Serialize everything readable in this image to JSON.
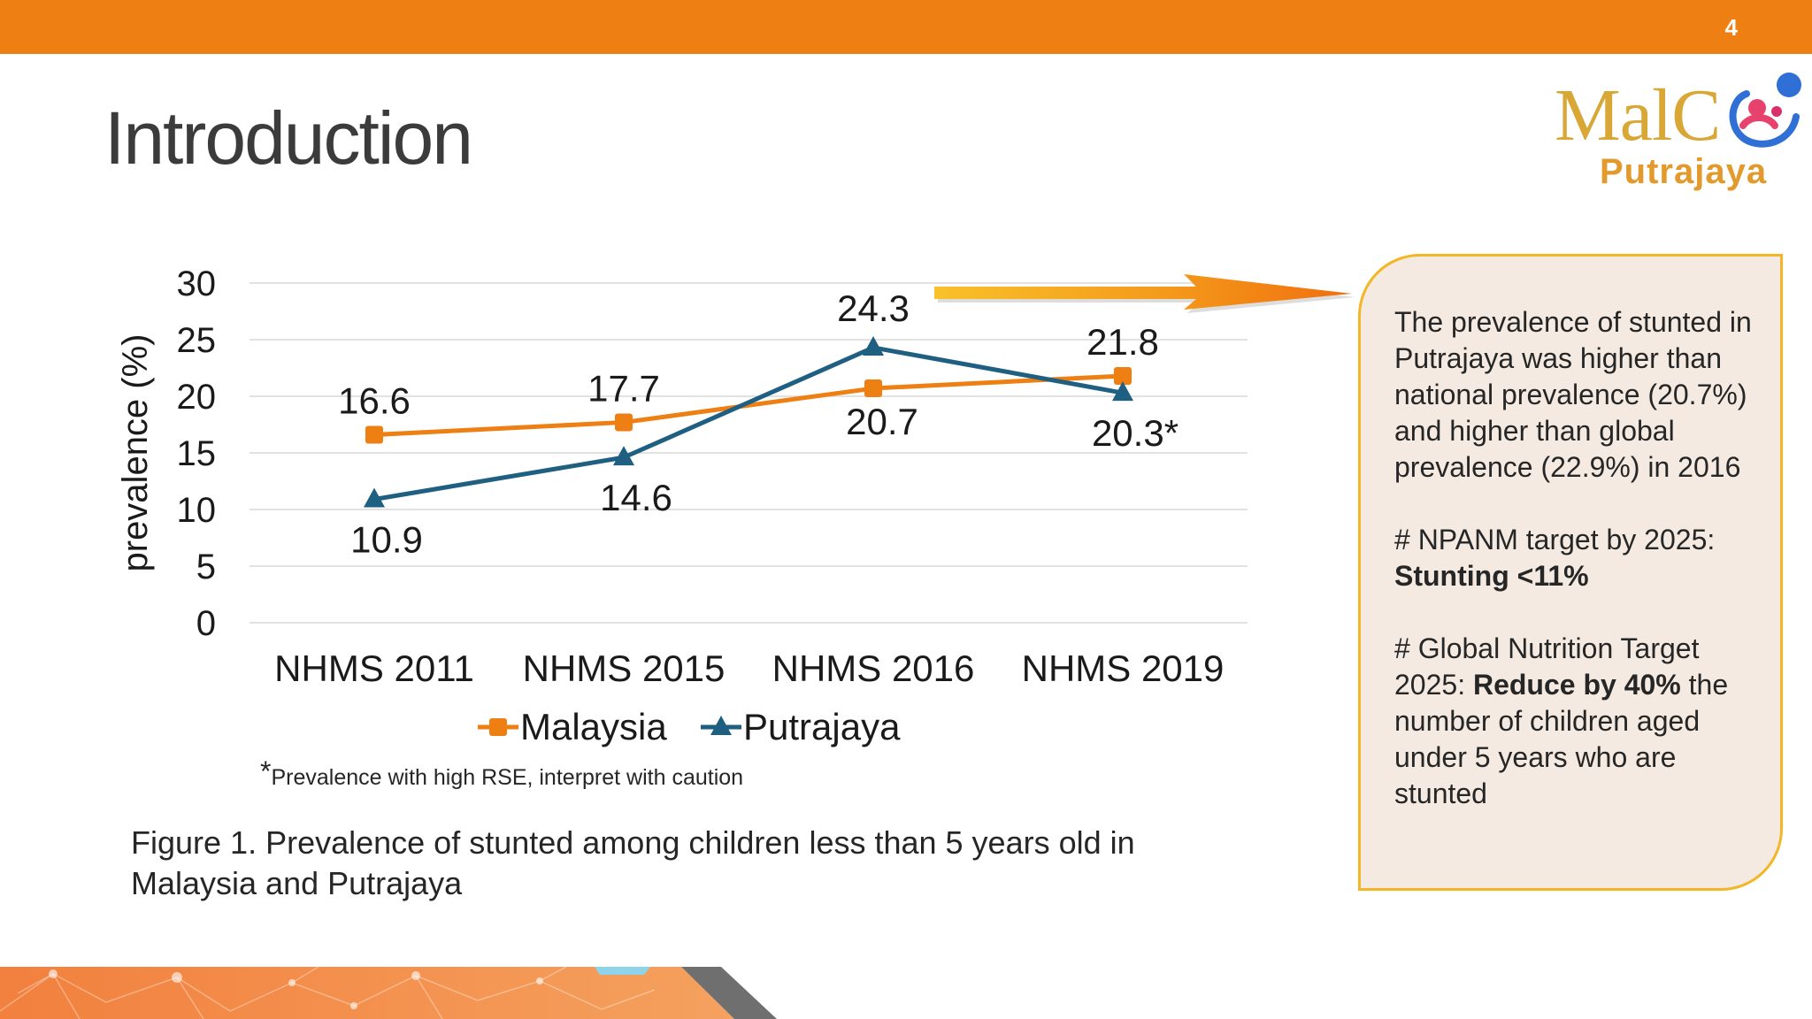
{
  "slide": {
    "number": "4",
    "title": "Introduction"
  },
  "logo": {
    "word": "MalC",
    "sub": "Putrajaya"
  },
  "colors": {
    "accent": "#ee7f13",
    "malaysia": "#ee7f13",
    "putrajaya": "#1f5f82",
    "callout_bg": "#f4eae1",
    "callout_border": "#f3b625"
  },
  "chart_data": {
    "type": "line",
    "categories": [
      "NHMS 2011",
      "NHMS 2015",
      "NHMS 2016",
      "NHMS 2019"
    ],
    "series": [
      {
        "name": "Malaysia",
        "marker": "square",
        "values": [
          16.6,
          17.7,
          20.7,
          21.8
        ],
        "labels": [
          "16.6",
          "17.7",
          "20.7",
          "21.8"
        ]
      },
      {
        "name": "Putrajaya",
        "marker": "triangle",
        "values": [
          10.9,
          14.6,
          24.3,
          20.3
        ],
        "labels": [
          "10.9",
          "14.6",
          "24.3",
          "20.3*"
        ]
      }
    ],
    "title": "",
    "xlabel": "",
    "ylabel": "prevalence (%)",
    "ylim": [
      0,
      30
    ],
    "yticks": [
      0,
      5,
      10,
      15,
      20,
      25,
      30
    ],
    "grid": true,
    "legend": "bottom"
  },
  "footnote": {
    "star": "*",
    "text": "Prevalence with high RSE, interpret with caution"
  },
  "caption": "Figure 1. Prevalence of stunted among children less than 5 years old in Malaysia and Putrajaya",
  "callout": {
    "p1": "The prevalence of stunted in Putrajaya was higher than national prevalence (20.7%) and higher than global prevalence (22.9%) in 2016",
    "p2_prefix": "# NPANM target by 2025:",
    "p2_bold": "Stunting <11%",
    "p3_prefix": "# Global Nutrition Target 2025:",
    "p3_bold": "Reduce by 40%",
    "p3_suffix": "the number of children aged under 5 years who are stunted"
  }
}
